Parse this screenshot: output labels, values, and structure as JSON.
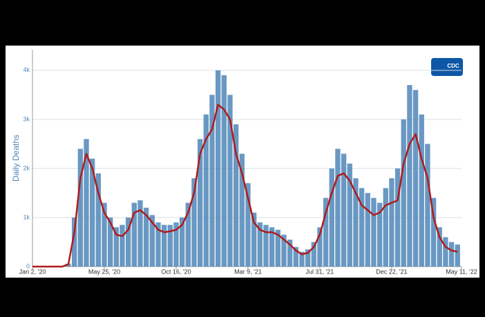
{
  "chart_data": {
    "type": "bar-line",
    "y_label": "Daily Deaths",
    "logo": "CDC",
    "x": [
      "2020-01-02",
      "2020-01-14",
      "2020-01-26",
      "2020-02-07",
      "2020-02-19",
      "2020-03-02",
      "2020-03-14",
      "2020-03-26",
      "2020-04-07",
      "2020-04-19",
      "2020-05-01",
      "2020-05-13",
      "2020-05-25",
      "2020-06-06",
      "2020-06-18",
      "2020-06-30",
      "2020-07-12",
      "2020-07-24",
      "2020-08-05",
      "2020-08-17",
      "2020-08-29",
      "2020-09-10",
      "2020-09-22",
      "2020-10-04",
      "2020-10-16",
      "2020-10-28",
      "2020-11-09",
      "2020-11-21",
      "2020-12-03",
      "2020-12-15",
      "2020-12-27",
      "2021-01-08",
      "2021-01-20",
      "2021-02-01",
      "2021-02-13",
      "2021-02-25",
      "2021-03-09",
      "2021-03-21",
      "2021-04-02",
      "2021-04-14",
      "2021-04-26",
      "2021-05-08",
      "2021-05-20",
      "2021-06-01",
      "2021-06-13",
      "2021-06-25",
      "2021-07-07",
      "2021-07-19",
      "2021-07-31",
      "2021-08-12",
      "2021-08-24",
      "2021-09-05",
      "2021-09-17",
      "2021-09-29",
      "2021-10-11",
      "2021-10-23",
      "2021-11-04",
      "2021-11-16",
      "2021-11-28",
      "2021-12-10",
      "2021-12-22",
      "2022-01-03",
      "2022-01-15",
      "2022-01-27",
      "2022-02-08",
      "2022-02-20",
      "2022-03-04",
      "2022-03-16",
      "2022-03-28",
      "2022-04-09",
      "2022-04-21",
      "2022-05-03"
    ],
    "series": [
      {
        "kind": "bar",
        "color": "#4f86b8",
        "values": [
          0,
          0,
          0,
          0,
          0,
          0,
          60,
          1000,
          2400,
          2600,
          2200,
          1900,
          1300,
          1000,
          800,
          850,
          1000,
          1300,
          1350,
          1200,
          1050,
          900,
          850,
          850,
          900,
          1000,
          1300,
          1800,
          2600,
          3100,
          3500,
          4000,
          3900,
          3500,
          2900,
          2300,
          1700,
          1100,
          900,
          850,
          800,
          750,
          650,
          550,
          400,
          300,
          350,
          500,
          800,
          1400,
          2000,
          2400,
          2300,
          2100,
          1800,
          1600,
          1500,
          1400,
          1300,
          1600,
          1800,
          2000,
          3000,
          3700,
          3600,
          3100,
          2500,
          1400,
          800,
          600,
          500,
          450
        ]
      },
      {
        "kind": "line",
        "color": "#b11a1a",
        "values": [
          0,
          0,
          0,
          0,
          0,
          0,
          50,
          700,
          1800,
          2300,
          2000,
          1500,
          1100,
          900,
          650,
          620,
          750,
          1100,
          1150,
          1050,
          900,
          750,
          700,
          720,
          750,
          850,
          1100,
          1500,
          2300,
          2600,
          2800,
          3300,
          3200,
          3000,
          2300,
          1900,
          1400,
          900,
          750,
          700,
          700,
          650,
          550,
          450,
          330,
          250,
          280,
          400,
          650,
          1100,
          1500,
          1850,
          1900,
          1750,
          1500,
          1250,
          1150,
          1050,
          1100,
          1250,
          1300,
          1350,
          2100,
          2500,
          2700,
          2200,
          1800,
          1000,
          600,
          400,
          330,
          300
        ]
      }
    ],
    "xlim": [
      "2020-01-02",
      "2022-05-11"
    ],
    "xticks": [
      {
        "value": "2020-01-02",
        "label": "Jan 2, '20"
      },
      {
        "value": "2020-05-25",
        "label": "May 25, '20"
      },
      {
        "value": "2020-10-16",
        "label": "Oct 16, '20"
      },
      {
        "value": "2021-03-09",
        "label": "Mar 9, '21"
      },
      {
        "value": "2021-07-31",
        "label": "Jul 31, '21"
      },
      {
        "value": "2021-12-22",
        "label": "Dec 22, '21"
      },
      {
        "value": "2022-05-11",
        "label": "May 11, '22"
      }
    ],
    "ylim": [
      0,
      4420
    ],
    "yticks": [
      0,
      {
        "value": 1000,
        "label": "1k"
      },
      {
        "value": 2000,
        "label": "2k"
      },
      {
        "value": 3000,
        "label": "3k"
      },
      {
        "value": 4000,
        "label": "4k"
      }
    ],
    "grid": true
  }
}
